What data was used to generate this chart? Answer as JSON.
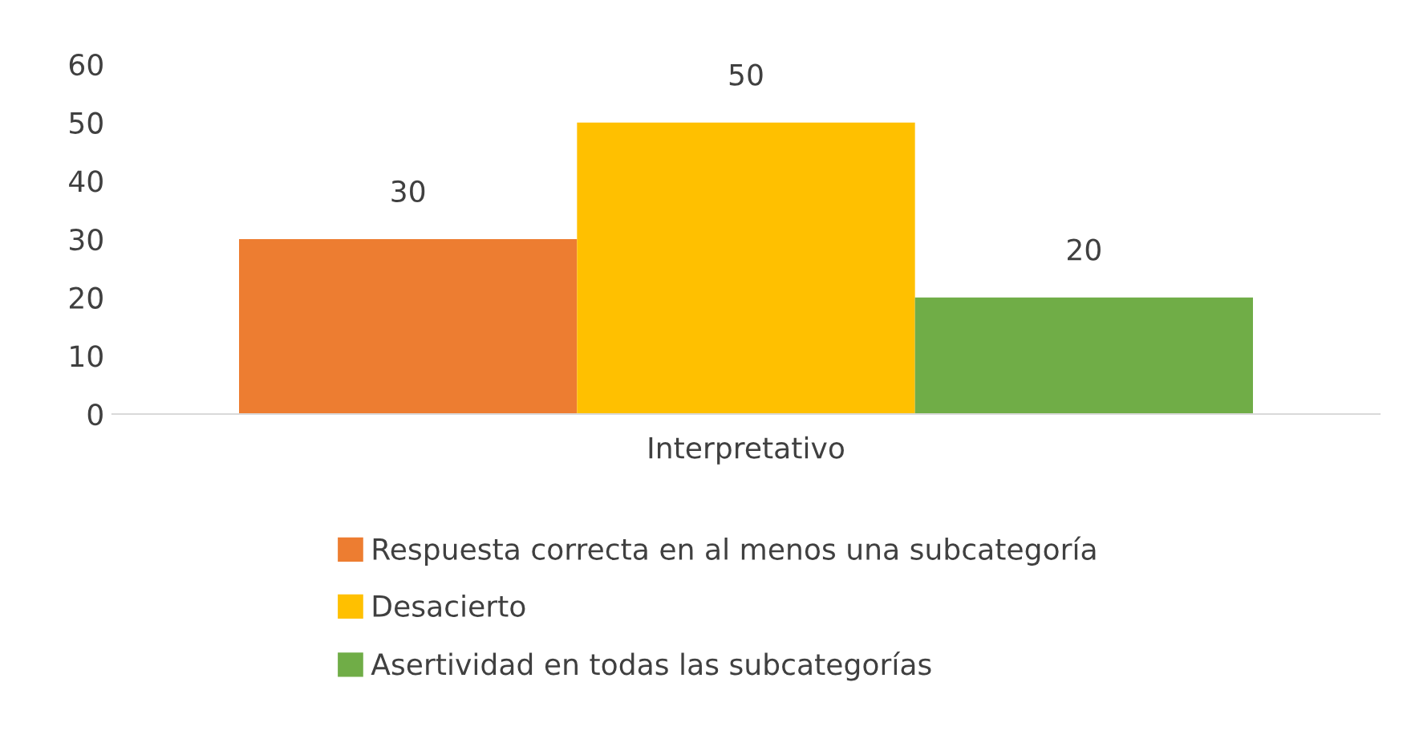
{
  "chart_data": {
    "type": "bar",
    "categories": [
      "Interpretativo"
    ],
    "series": [
      {
        "name": "Respuesta correcta en al menos una subcategoría",
        "color": "#ed7d31",
        "values": [
          30
        ]
      },
      {
        "name": "Desacierto",
        "color": "#ffc000",
        "values": [
          50
        ]
      },
      {
        "name": "Asertividad en todas las subcategorías",
        "color": "#70ad47",
        "values": [
          20
        ]
      }
    ],
    "ylim": [
      0,
      60
    ],
    "yticks": [
      0,
      10,
      20,
      30,
      40,
      50,
      60
    ],
    "grid": false,
    "legend": "bottom",
    "data_labels": true
  }
}
